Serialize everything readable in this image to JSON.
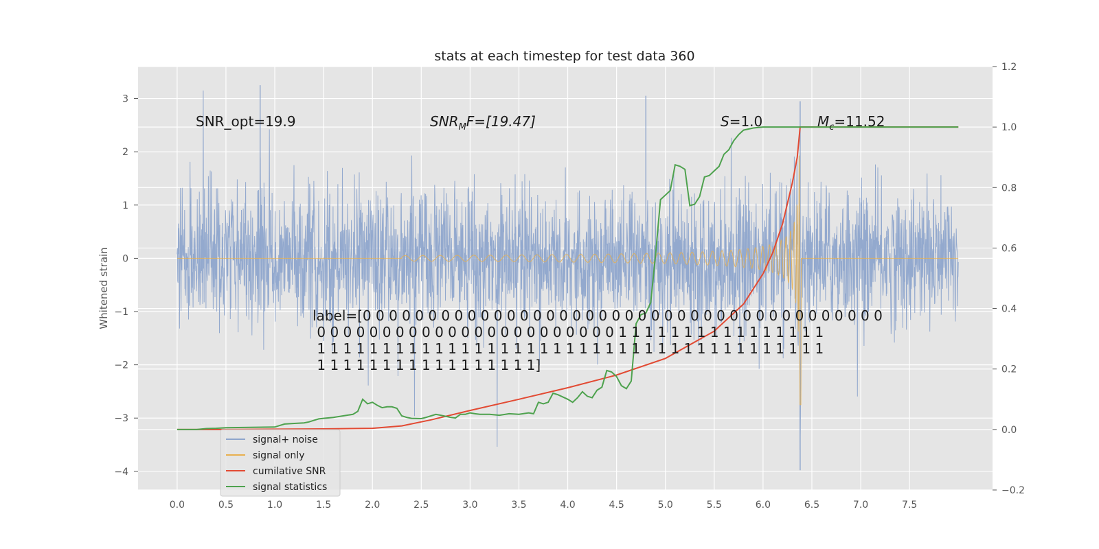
{
  "chart_data": {
    "type": "line",
    "title": "stats at each timestep for test data 360",
    "xlabel": "",
    "ylabel": "Whitened strain",
    "y2label": "",
    "xlim": [
      -0.4,
      8.35
    ],
    "ylim": [
      -4.35,
      3.6
    ],
    "y2lim": [
      -0.2,
      1.2
    ],
    "xticks": [
      "0.0",
      "0.5",
      "1.0",
      "1.5",
      "2.0",
      "2.5",
      "3.0",
      "3.5",
      "4.0",
      "4.5",
      "5.0",
      "5.5",
      "6.0",
      "6.5",
      "7.0",
      "7.5"
    ],
    "yticks": [
      "3",
      "2",
      "1",
      "0",
      "−1",
      "−2",
      "−3",
      "−4"
    ],
    "y2ticks": [
      "1.2",
      "1.0",
      "0.8",
      "0.6",
      "0.4",
      "0.2",
      "0.0",
      "−0.2"
    ],
    "grid": true,
    "legend_location": "lower-left",
    "colors": {
      "plot_bg": "#e5e5e5",
      "grid": "#ffffff",
      "noise": "#8ea5cc",
      "signal": "#e8b04f",
      "snr": "#e24a33",
      "stat": "#4ea24e"
    },
    "series": [
      {
        "name": "signal+ noise",
        "axis": "left",
        "description_range": [
          -4.2,
          3.25
        ],
        "approx_peaks": [
          {
            "x": 0.85,
            "y": 3.25
          },
          {
            "x": 6.38,
            "y": 2.95
          },
          {
            "x": 4.8,
            "y": 3.05
          },
          {
            "x": 6.38,
            "y": -3.98
          }
        ]
      },
      {
        "name": "signal only",
        "axis": "left",
        "chirp_start": 2.3,
        "merger_time": 6.38,
        "peak_amplitude": 2.75
      },
      {
        "name": "cumilative SNR",
        "axis": "right",
        "x": [
          0.0,
          0.5,
          1.0,
          1.5,
          2.0,
          2.3,
          2.6,
          3.0,
          3.5,
          4.0,
          4.5,
          5.0,
          5.5,
          5.8,
          6.0,
          6.1,
          6.2,
          6.3,
          6.35,
          6.38,
          6.4,
          6.6,
          7.0,
          7.5,
          8.0
        ],
        "values": [
          0.0,
          0.0,
          0.001,
          0.002,
          0.004,
          0.012,
          0.032,
          0.063,
          0.1,
          0.138,
          0.18,
          0.235,
          0.325,
          0.415,
          0.515,
          0.585,
          0.68,
          0.815,
          0.9,
          1.0,
          1.0,
          1.0,
          1.0,
          1.0,
          1.0
        ]
      },
      {
        "name": "signal statistics",
        "axis": "right",
        "x": [
          0.0,
          0.2,
          0.3,
          0.4,
          0.5,
          1.0,
          1.05,
          1.1,
          1.2,
          1.3,
          1.35,
          1.4,
          1.45,
          1.5,
          1.6,
          1.7,
          1.8,
          1.85,
          1.9,
          1.95,
          2.0,
          2.05,
          2.1,
          2.15,
          2.2,
          2.25,
          2.3,
          2.35,
          2.4,
          2.5,
          2.55,
          2.6,
          2.65,
          2.7,
          2.8,
          2.85,
          2.9,
          2.95,
          3.0,
          3.05,
          3.1,
          3.2,
          3.3,
          3.4,
          3.5,
          3.6,
          3.65,
          3.7,
          3.75,
          3.8,
          3.85,
          3.9,
          4.0,
          4.05,
          4.1,
          4.15,
          4.2,
          4.25,
          4.3,
          4.35,
          4.4,
          4.45,
          4.5,
          4.55,
          4.6,
          4.65,
          4.7,
          4.75,
          4.8,
          4.85,
          4.9,
          4.95,
          5.0,
          5.05,
          5.1,
          5.15,
          5.2,
          5.25,
          5.3,
          5.35,
          5.4,
          5.45,
          5.5,
          5.55,
          5.6,
          5.65,
          5.7,
          5.75,
          5.8,
          5.9,
          6.0,
          6.2,
          6.5,
          7.0,
          7.5,
          8.0
        ],
        "values": [
          0.0,
          0.0,
          0.003,
          0.004,
          0.006,
          0.008,
          0.013,
          0.018,
          0.02,
          0.022,
          0.025,
          0.03,
          0.035,
          0.037,
          0.04,
          0.045,
          0.05,
          0.06,
          0.1,
          0.085,
          0.09,
          0.08,
          0.072,
          0.075,
          0.075,
          0.07,
          0.045,
          0.04,
          0.037,
          0.036,
          0.04,
          0.045,
          0.05,
          0.047,
          0.04,
          0.038,
          0.05,
          0.05,
          0.055,
          0.052,
          0.05,
          0.05,
          0.047,
          0.052,
          0.05,
          0.055,
          0.052,
          0.09,
          0.085,
          0.09,
          0.12,
          0.115,
          0.1,
          0.09,
          0.105,
          0.125,
          0.11,
          0.105,
          0.13,
          0.14,
          0.195,
          0.19,
          0.175,
          0.145,
          0.135,
          0.16,
          0.35,
          0.38,
          0.385,
          0.42,
          0.58,
          0.76,
          0.775,
          0.79,
          0.875,
          0.87,
          0.86,
          0.74,
          0.745,
          0.77,
          0.835,
          0.84,
          0.855,
          0.87,
          0.91,
          0.925,
          0.955,
          0.975,
          0.99,
          0.997,
          1.0,
          1.0,
          1.0,
          1.0,
          1.0,
          1.0
        ]
      }
    ],
    "annotations": {
      "snr_opt": "SNR_opt=19.9",
      "snr_mf_main": "SNR",
      "snr_mf_sub": "M",
      "snr_mf_rest": "F=[19.47]",
      "s_var": "S",
      "s_rest": "=1.0",
      "mc_var": "M",
      "mc_sub": "c",
      "mc_rest": "=11.52",
      "label_lines": [
        "label=[0 0 0 0 0 0 0 0 0 0 0 0 0 0 0 0 0 0 0 0 0 0 0 0 0 0 0 0 0 0 0 0 0 0 0 0 0 0 0 0",
        " 0 0 0 0 0 0 0 0 0 0 0 0 0 0 0 0 0 0 0 0 0 0 0 1 1 1 1 1 1 1 1 1 1 1 1 1 1 1 1",
        " 1 1 1 1 1 1 1 1 1 1 1 1 1 1 1 1 1 1 1 1 1 1 1 1 1 1 1 1 1 1 1 1 1 1 1 1 1 1 1",
        " 1 1 1 1 1 1 1 1 1 1 1 1 1 1 1 1 1]"
      ]
    },
    "legend": [
      {
        "label": "signal+ noise"
      },
      {
        "label": "signal only"
      },
      {
        "label": "cumilative SNR"
      },
      {
        "label": "signal statistics"
      }
    ]
  }
}
